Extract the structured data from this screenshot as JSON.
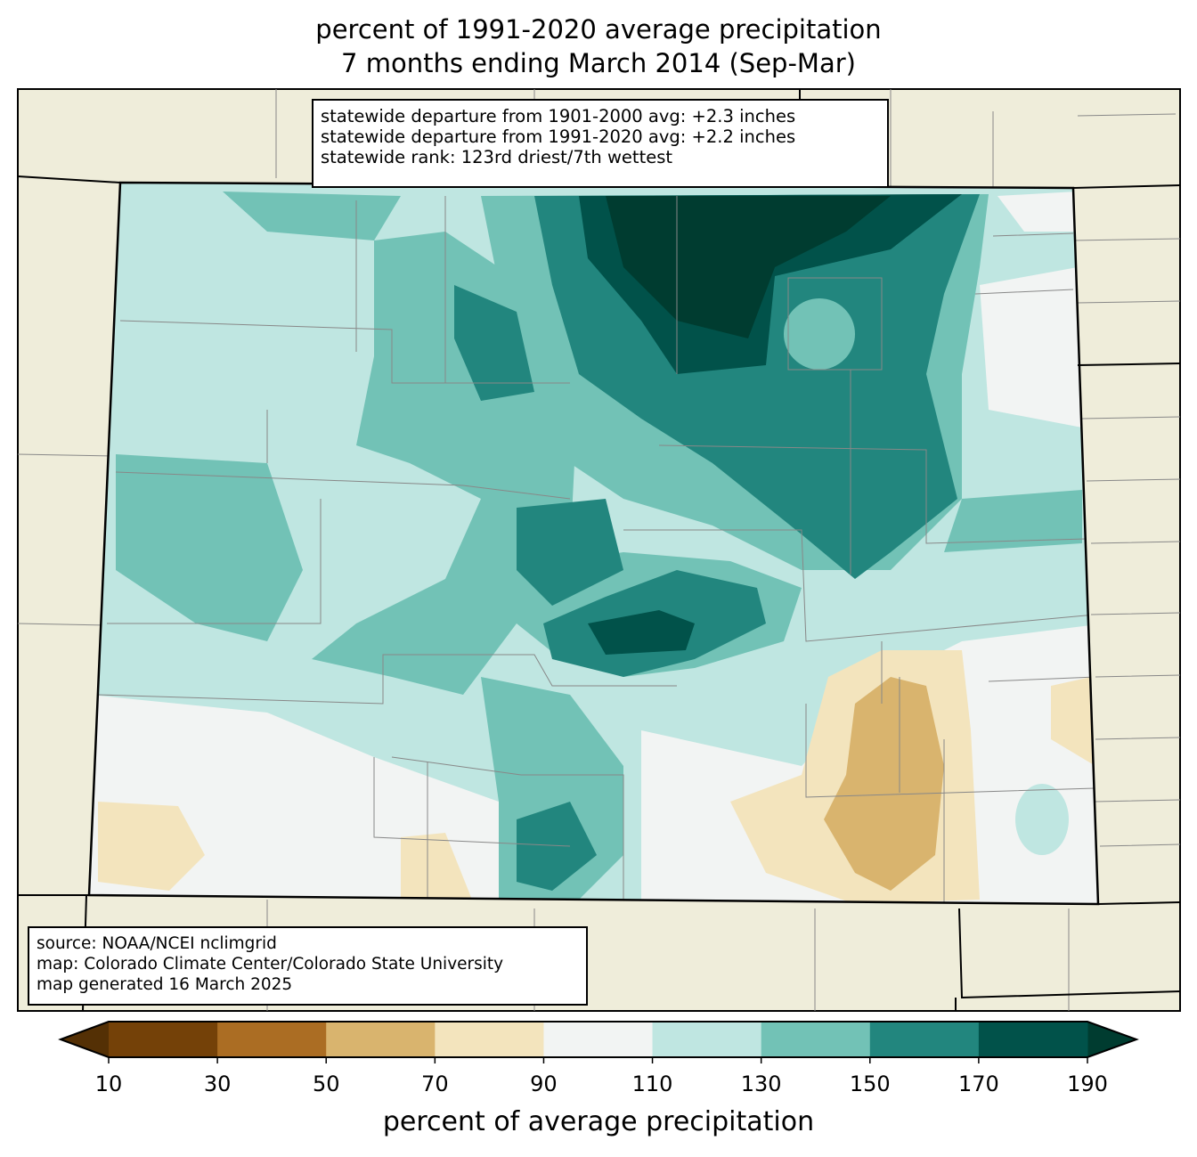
{
  "title": {
    "line1": "percent of 1991-2020 average precipitation",
    "line2": "7 months ending March 2014 (Sep-Mar)"
  },
  "stats": {
    "line1": "statewide departure from 1901-2000 avg: +2.3 inches",
    "line2": "statewide departure from 1991-2020 avg: +2.2 inches",
    "line3": "statewide rank: 123rd driest/7th wettest"
  },
  "source": {
    "line1": "source: NOAA/NCEI nclimgrid",
    "line2": "map: Colorado Climate Center/Colorado State University",
    "line3": "map generated 16 March 2025"
  },
  "colorbar": {
    "label": "percent of average precipitation",
    "ticks": [
      "10",
      "30",
      "50",
      "70",
      "90",
      "110",
      "130",
      "150",
      "170",
      "190"
    ],
    "colors": [
      "#744108",
      "#ab6d23",
      "#d9b46e",
      "#f3e4bd",
      "#f2f4f3",
      "#bfe6e1",
      "#72c2b6",
      "#22867e",
      "#01524a"
    ],
    "under": "#543005",
    "over": "#003c30"
  }
}
